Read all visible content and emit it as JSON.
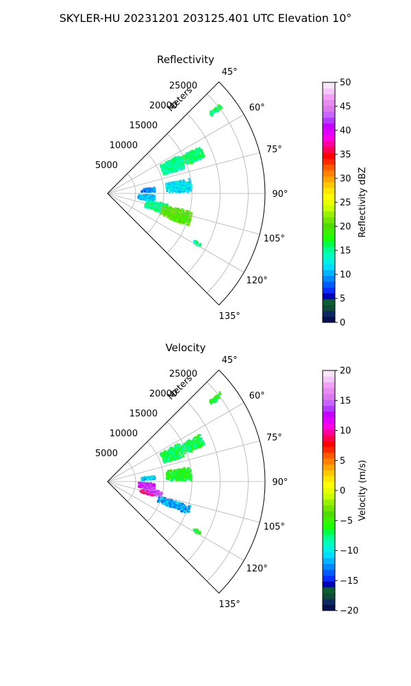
{
  "figure": {
    "title": "SKYLER-HU  20231201  203125.401 UTC Elevation 10°"
  },
  "chart_data": [
    {
      "type": "heatmap",
      "projection": "polar-sector",
      "title": "Reflectivity",
      "radial_label": "Meters",
      "range_ticks": [
        5000,
        10000,
        15000,
        20000,
        25000
      ],
      "range_tick_labels": [
        "5000",
        "10000",
        "15000",
        "20000",
        "25000"
      ],
      "range_max": 28000,
      "azimuth_range_deg": [
        45,
        135
      ],
      "azimuth_ticks_deg": [
        45,
        60,
        75,
        90,
        105,
        120,
        135
      ],
      "azimuth_tick_labels": [
        "45°",
        "60°",
        "75°",
        "90°",
        "105°",
        "120°",
        "135°"
      ],
      "grid": true,
      "colorbar": {
        "label": "Reflectivity dBZ",
        "range": [
          0,
          50
        ],
        "ticks": [
          0,
          5,
          10,
          15,
          20,
          25,
          30,
          35,
          40,
          45,
          50
        ],
        "tick_labels": [
          "0",
          "5",
          "10",
          "15",
          "20",
          "25",
          "30",
          "35",
          "40",
          "45",
          "50"
        ],
        "colors": [
          "#06114f",
          "#0b2a63",
          "#0f4a3a",
          "#0b5e2a",
          "#0000b4",
          "#0a2cff",
          "#005cff",
          "#0088ff",
          "#00b4ff",
          "#00dcff",
          "#00f0e6",
          "#00ffbe",
          "#00ff8c",
          "#00ff46",
          "#1eff00",
          "#3cf000",
          "#50dc00",
          "#6ee600",
          "#96f000",
          "#c8ff00",
          "#e6ff00",
          "#ffff00",
          "#ffe600",
          "#ffc800",
          "#ffa500",
          "#ff8200",
          "#ff5a00",
          "#ff2800",
          "#ff0000",
          "#ff0050",
          "#ff00a0",
          "#ff00e6",
          "#e100ff",
          "#c800ff",
          "#b43cff",
          "#c864ff",
          "#dc78f0",
          "#e68cf0",
          "#f0a0f5",
          "#f5c8fa",
          "#fae6fc"
        ]
      },
      "echo_regions": [
        {
          "az": [
            51.5,
            53.5
          ],
          "r": [
            23000,
            25500
          ],
          "value": 16
        },
        {
          "az": [
            63,
            70
          ],
          "r": [
            14500,
            18500
          ],
          "value": 16
        },
        {
          "az": [
            62,
            72
          ],
          "r": [
            10500,
            14500
          ],
          "value": 15
        },
        {
          "az": [
            80,
            89
          ],
          "r": [
            10500,
            15000
          ],
          "value": 12
        },
        {
          "az": [
            83,
            88
          ],
          "r": [
            6000,
            8500
          ],
          "value": 9
        },
        {
          "az": [
            92,
            100
          ],
          "r": [
            5500,
            8500
          ],
          "value": 11
        },
        {
          "az": [
            100,
            110
          ],
          "r": [
            7000,
            11000
          ],
          "value": 15
        },
        {
          "az": [
            102,
            112
          ],
          "r": [
            10000,
            15500
          ],
          "value": 20
        },
        {
          "az": [
            118,
            120
          ],
          "r": [
            17500,
            19000
          ],
          "value": 15
        }
      ]
    },
    {
      "type": "heatmap",
      "projection": "polar-sector",
      "title": "Velocity",
      "radial_label": "Meters",
      "range_ticks": [
        5000,
        10000,
        15000,
        20000,
        25000
      ],
      "range_tick_labels": [
        "5000",
        "10000",
        "15000",
        "20000",
        "25000"
      ],
      "range_max": 28000,
      "azimuth_range_deg": [
        45,
        135
      ],
      "azimuth_ticks_deg": [
        45,
        60,
        75,
        90,
        105,
        120,
        135
      ],
      "azimuth_tick_labels": [
        "45°",
        "60°",
        "75°",
        "90°",
        "105°",
        "120°",
        "135°"
      ],
      "grid": true,
      "colorbar": {
        "label": "Velocity (m/s)",
        "range": [
          -20,
          20
        ],
        "ticks": [
          -20,
          -15,
          -10,
          -5,
          0,
          5,
          10,
          15,
          20
        ],
        "tick_labels": [
          "−20",
          "−15",
          "−10",
          "−5",
          "0",
          "5",
          "10",
          "15",
          "20"
        ],
        "colors": [
          "#06114f",
          "#0b2a63",
          "#0f4a3a",
          "#0b5e2a",
          "#0000b4",
          "#0a2cff",
          "#005cff",
          "#0088ff",
          "#00b4ff",
          "#00dcff",
          "#00f0e6",
          "#00ffbe",
          "#00ff8c",
          "#00ff46",
          "#1eff00",
          "#3cf000",
          "#50dc00",
          "#6ee600",
          "#96f000",
          "#c8ff00",
          "#e6ff00",
          "#ffff00",
          "#ffe600",
          "#ffc800",
          "#ffa500",
          "#ff8200",
          "#ff5a00",
          "#ff2800",
          "#ff0000",
          "#ff0050",
          "#ff00a0",
          "#ff00e6",
          "#e100ff",
          "#c800ff",
          "#b43cff",
          "#c864ff",
          "#dc78f0",
          "#e68cf0",
          "#f0a0f5",
          "#f5c8fa",
          "#fae6fc"
        ]
      },
      "echo_regions": [
        {
          "az": [
            51.5,
            53.5
          ],
          "r": [
            23000,
            25500
          ],
          "value": -6
        },
        {
          "az": [
            63,
            70
          ],
          "r": [
            14500,
            18500
          ],
          "value": -7
        },
        {
          "az": [
            62,
            72
          ],
          "r": [
            10500,
            14500
          ],
          "value": -7
        },
        {
          "az": [
            80,
            89
          ],
          "r": [
            10500,
            15000
          ],
          "value": -6
        },
        {
          "az": [
            83,
            88
          ],
          "r": [
            6000,
            8500
          ],
          "value": -11
        },
        {
          "az": [
            92,
            100
          ],
          "r": [
            5500,
            8500
          ],
          "value": 13
        },
        {
          "az": [
            100,
            106
          ],
          "r": [
            6500,
            10000
          ],
          "value": 14
        },
        {
          "az": [
            106,
            112
          ],
          "r": [
            9500,
            15500
          ],
          "value": -12
        },
        {
          "az": [
            104,
            108
          ],
          "r": [
            6000,
            8500
          ],
          "value": 10
        },
        {
          "az": [
            118,
            120
          ],
          "r": [
            17500,
            19000
          ],
          "value": -6
        }
      ]
    }
  ]
}
